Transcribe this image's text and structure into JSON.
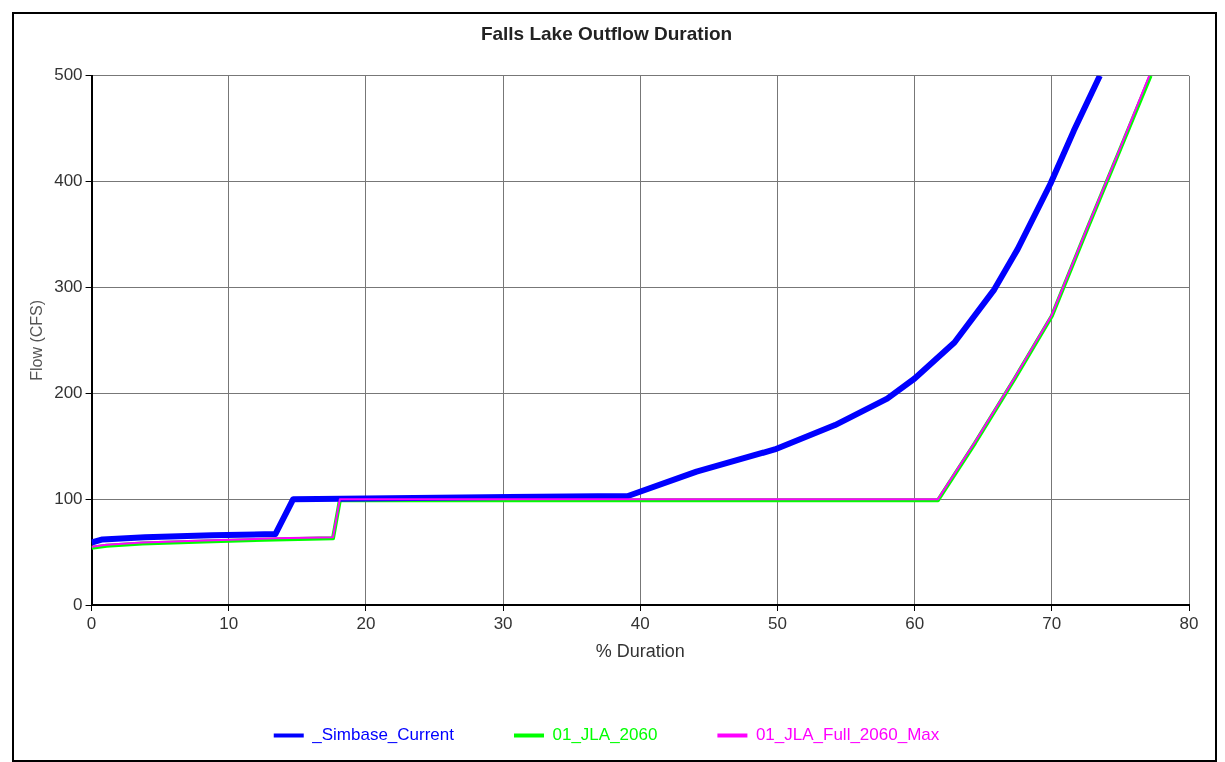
{
  "chart_data": {
    "type": "line",
    "title": "Falls Lake Outflow Duration",
    "xlabel": "% Duration",
    "ylabel": "Flow (CFS)",
    "xlim": [
      0,
      80
    ],
    "xticks": [
      0,
      10,
      20,
      30,
      40,
      50,
      60,
      70,
      80
    ],
    "ylim": [
      0,
      500
    ],
    "yticks": [
      0,
      100,
      200,
      300,
      400,
      500
    ],
    "grid": true,
    "legend": "bottom",
    "marker": "none",
    "line_style": "solid",
    "series": [
      {
        "name": "_Simbase_Current",
        "color": "#0000ff",
        "x": [
          0,
          0.8,
          3.9,
          8.8,
          13.4,
          14.7,
          39.1,
          44.1,
          49.8,
          54.2,
          58,
          60,
          62.9,
          65.8,
          67.5,
          69.9,
          71.6,
          73.5
        ],
        "values": [
          59,
          62,
          64,
          66,
          67,
          100,
          103,
          126,
          147,
          170,
          195,
          214,
          248,
          298,
          336,
          398,
          448,
          500
        ]
      },
      {
        "name": "01_JLA_2060",
        "color": "#00ff00",
        "x": [
          0,
          1.1,
          3.7,
          8.2,
          13.4,
          17.6,
          18.1,
          61.7,
          64.4,
          67.3,
          70,
          72.6,
          74.9,
          77.2
        ],
        "values": [
          54,
          56,
          58,
          60,
          62,
          63,
          99,
          99,
          153,
          214,
          273,
          356,
          428,
          500
        ]
      },
      {
        "name": "01_JLA_Full_2060_Max",
        "color": "#ff00ff",
        "x": [
          0,
          1.1,
          3.7,
          8.2,
          13.4,
          17.6,
          18.1,
          61.7,
          64.4,
          67.3,
          70,
          72.6,
          74.9,
          77.1
        ],
        "values": [
          55,
          57,
          59,
          61,
          63,
          64,
          100,
          100,
          154,
          215,
          274,
          357,
          429,
          500
        ]
      }
    ]
  }
}
